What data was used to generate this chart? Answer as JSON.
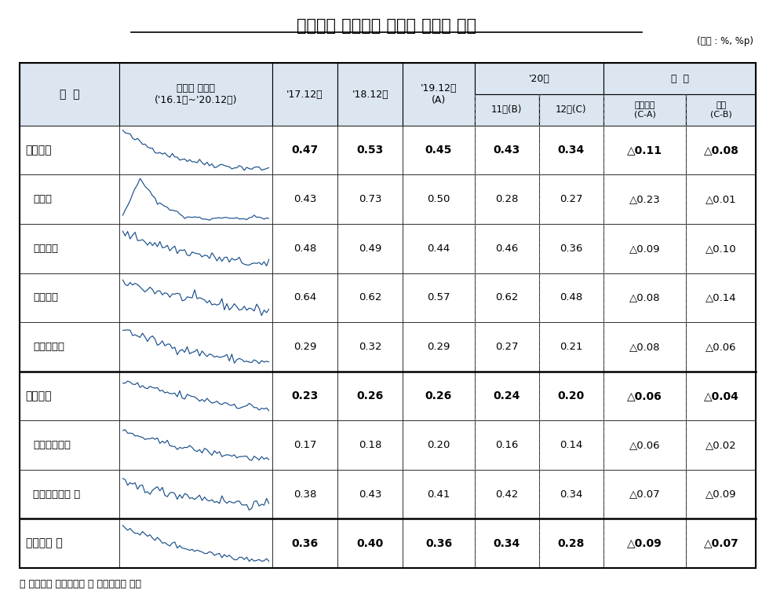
{
  "title": "국내은행 원화대출 부문별 연체율 추이",
  "unit_label": "(단위 : %, %p)",
  "footnote": "＊ 은행계정 원화대출금 및 신탁대출금 기준",
  "header_bg": "#dce6f1",
  "rows": [
    {
      "label": "기업대출",
      "indent": false,
      "bold": true,
      "values": [
        "0.47",
        "0.53",
        "0.45",
        "0.43",
        "0.34",
        "△0.11",
        "△0.08"
      ],
      "series_type": "기업대출"
    },
    {
      "label": "대기업",
      "indent": true,
      "bold": false,
      "values": [
        "0.43",
        "0.73",
        "0.50",
        "0.28",
        "0.27",
        "△0.23",
        "△0.01"
      ],
      "series_type": "대기업"
    },
    {
      "label": "중소기업",
      "indent": true,
      "bold": false,
      "values": [
        "0.48",
        "0.49",
        "0.44",
        "0.46",
        "0.36",
        "△0.09",
        "△0.10"
      ],
      "series_type": "중소기업"
    },
    {
      "label": "중소법인",
      "indent": true,
      "bold": false,
      "values": [
        "0.64",
        "0.62",
        "0.57",
        "0.62",
        "0.48",
        "△0.08",
        "△0.14"
      ],
      "series_type": "중소법인"
    },
    {
      "label": "개인사업자",
      "indent": true,
      "bold": false,
      "values": [
        "0.29",
        "0.32",
        "0.29",
        "0.27",
        "0.21",
        "△0.08",
        "△0.06"
      ],
      "series_type": "개인사업자"
    },
    {
      "label": "가계대출",
      "indent": false,
      "bold": true,
      "values": [
        "0.23",
        "0.26",
        "0.26",
        "0.24",
        "0.20",
        "△0.06",
        "△0.04"
      ],
      "series_type": "가계대출"
    },
    {
      "label": "주택담보대출",
      "indent": true,
      "bold": false,
      "values": [
        "0.17",
        "0.18",
        "0.20",
        "0.16",
        "0.14",
        "△0.06",
        "△0.02"
      ],
      "series_type": "주택담보대출"
    },
    {
      "label": "가계신용대출 등",
      "indent": true,
      "bold": false,
      "values": [
        "0.38",
        "0.43",
        "0.41",
        "0.42",
        "0.34",
        "△0.07",
        "△0.09"
      ],
      "series_type": "가계신용대출"
    },
    {
      "label": "원화대출 계",
      "indent": false,
      "bold": true,
      "values": [
        "0.36",
        "0.40",
        "0.36",
        "0.34",
        "0.28",
        "△0.09",
        "△0.07"
      ],
      "series_type": "원화대출계"
    }
  ]
}
